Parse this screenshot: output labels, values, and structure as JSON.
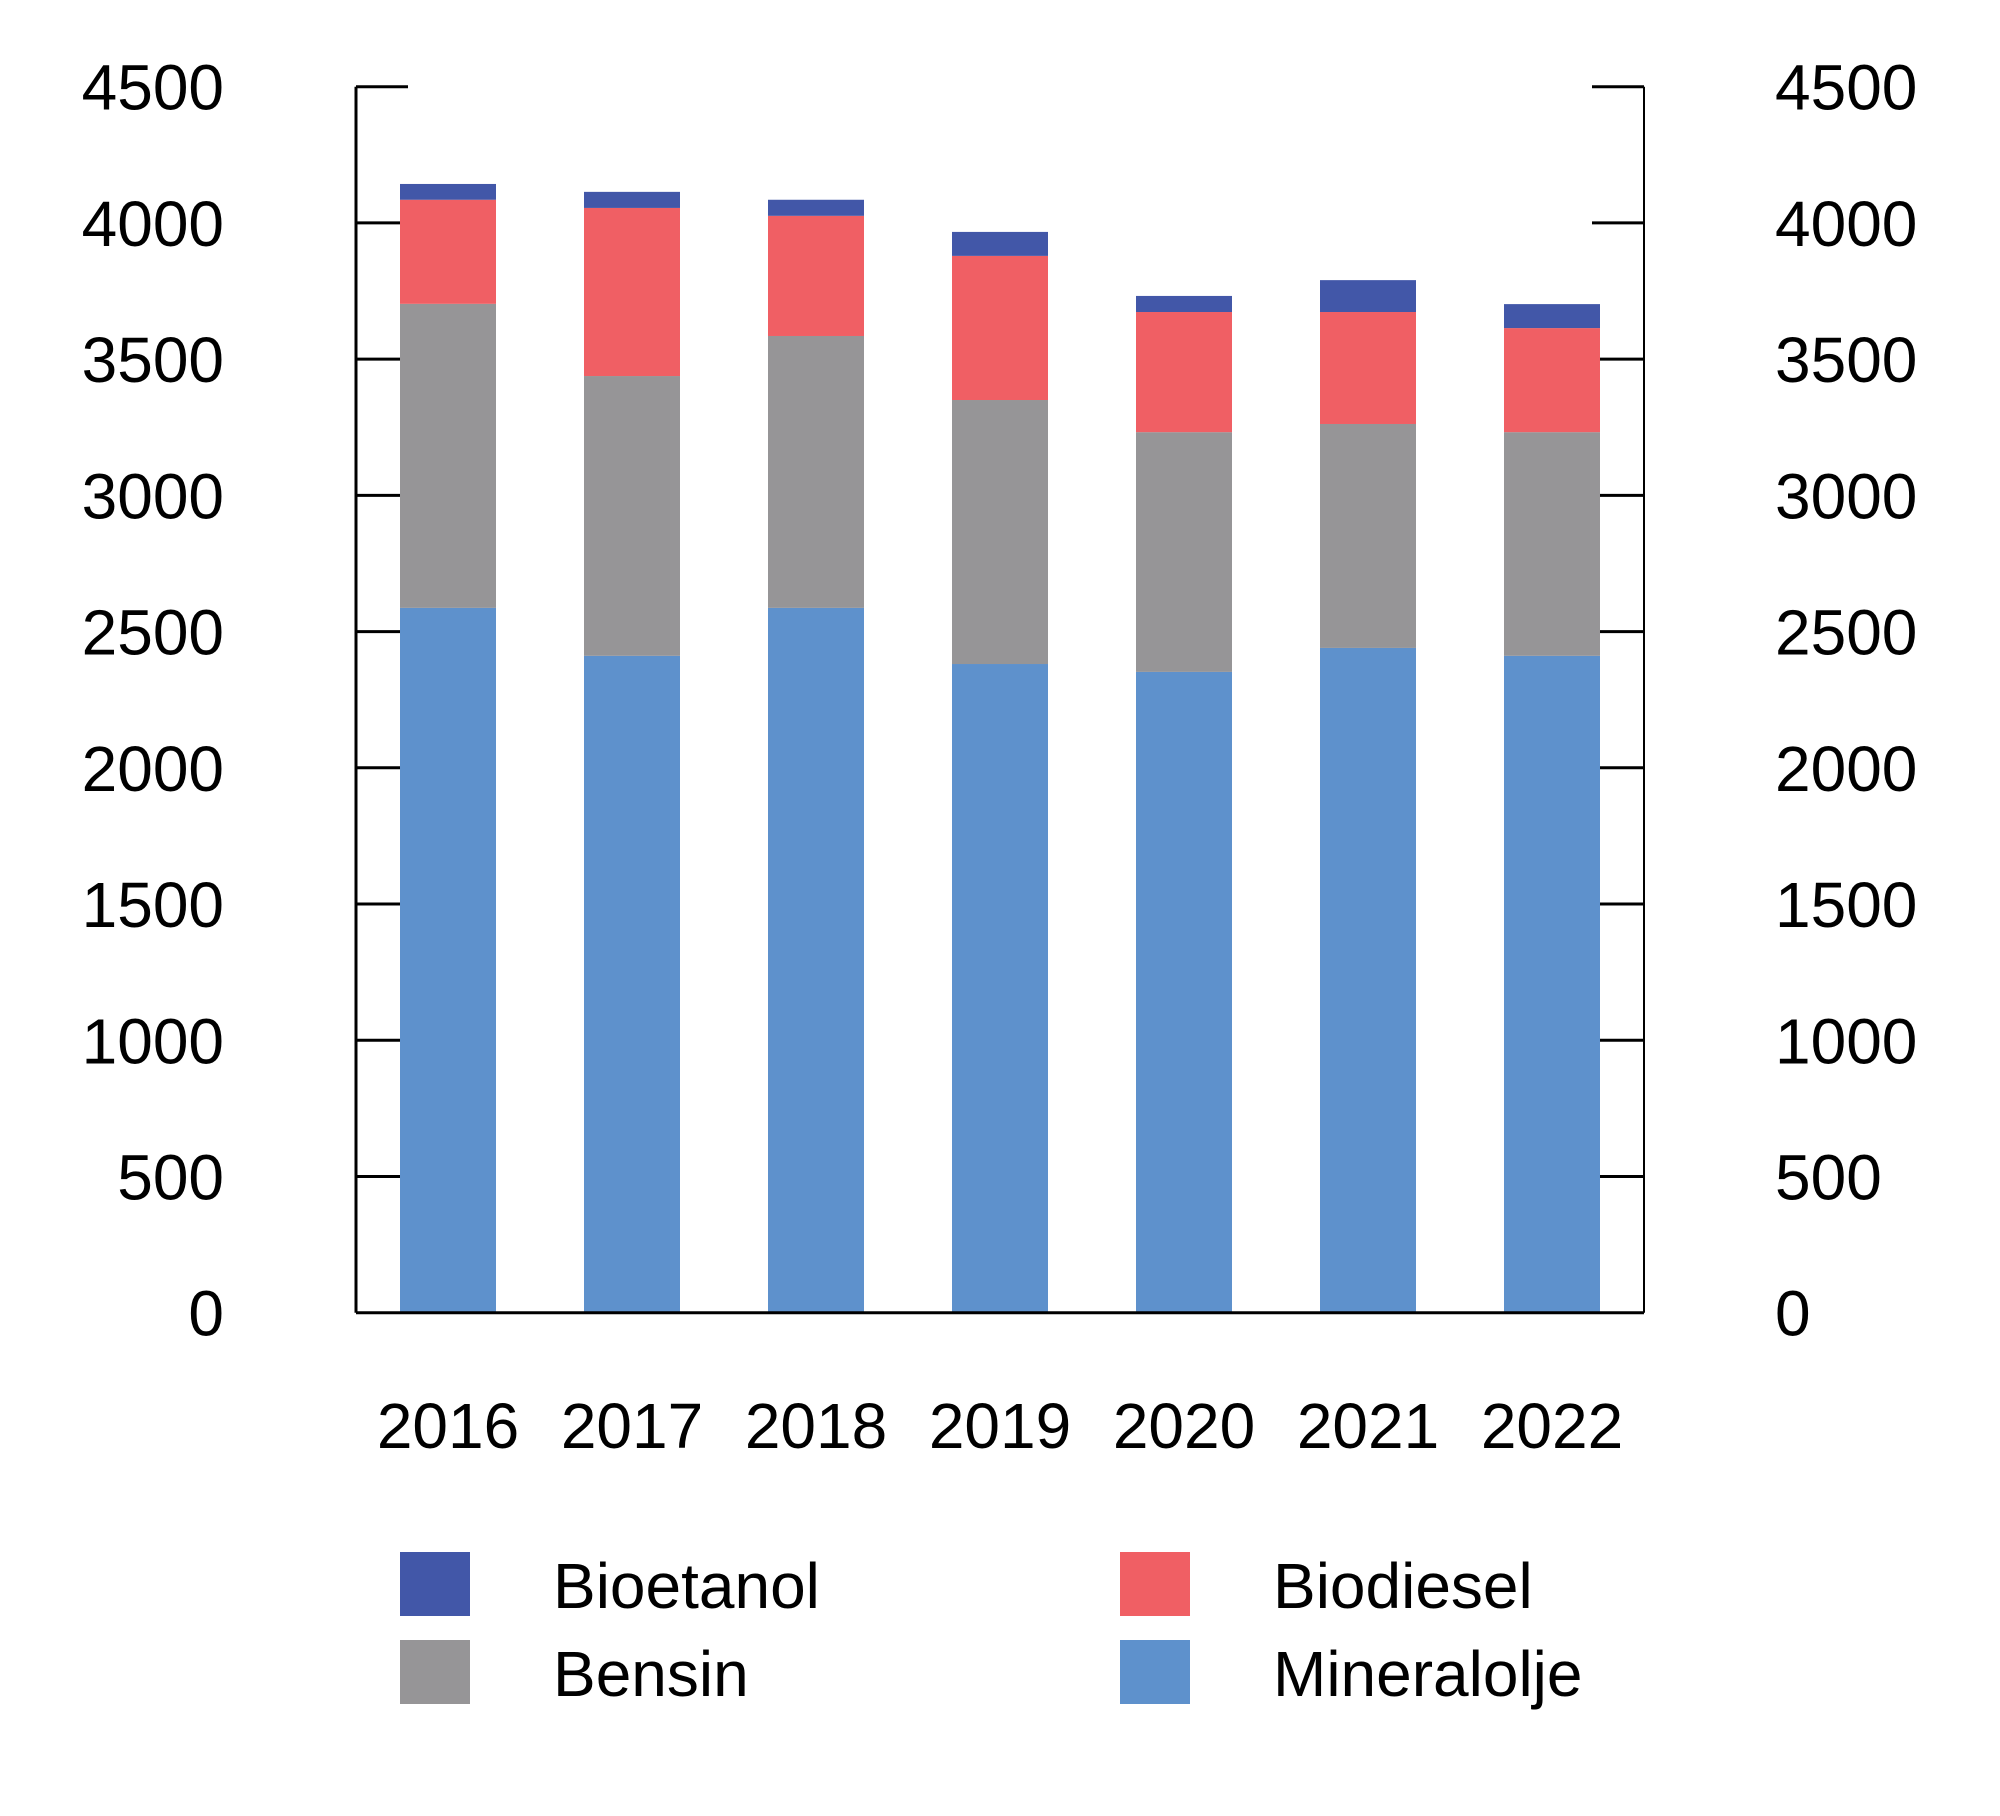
{
  "chart_data": {
    "type": "bar",
    "stacked": true,
    "title": "",
    "xlabel": "",
    "ylabel": "",
    "ylim": [
      0,
      4500
    ],
    "yticks": [
      0,
      500,
      1000,
      1500,
      2000,
      2500,
      3000,
      3500,
      4000,
      4500
    ],
    "ytick_labels": [
      "0",
      "500",
      "1000",
      "1500",
      "2000",
      "2500",
      "3000",
      "3500",
      "4000",
      "4500"
    ],
    "secondary_y_axis": true,
    "grid": false,
    "legend_position": "bottom",
    "categories": [
      "2016",
      "2017",
      "2018",
      "2019",
      "2020",
      "2021",
      "2022"
    ],
    "series": [
      {
        "name": "Mineralolje",
        "color": "#5E91CC",
        "values": [
          2587,
          2411,
          2587,
          2381,
          2352,
          2440,
          2411
        ]
      },
      {
        "name": "Bensin",
        "color": "#969597",
        "values": [
          1116,
          1027,
          998,
          969,
          880,
          822,
          821
        ]
      },
      {
        "name": "Biodiesel",
        "color": "#F05F64",
        "values": [
          382,
          617,
          441,
          529,
          441,
          411,
          382
        ]
      },
      {
        "name": "Bioetanol",
        "color": "#4257A8",
        "values": [
          58,
          59,
          59,
          88,
          59,
          117,
          88
        ]
      }
    ],
    "legend": [
      {
        "label": "Bioetanol",
        "color": "#4257A8"
      },
      {
        "label": "Biodiesel",
        "color": "#F05F64"
      },
      {
        "label": "Bensin",
        "color": "#969597"
      },
      {
        "label": "Mineralolje",
        "color": "#5E91CC"
      }
    ]
  }
}
